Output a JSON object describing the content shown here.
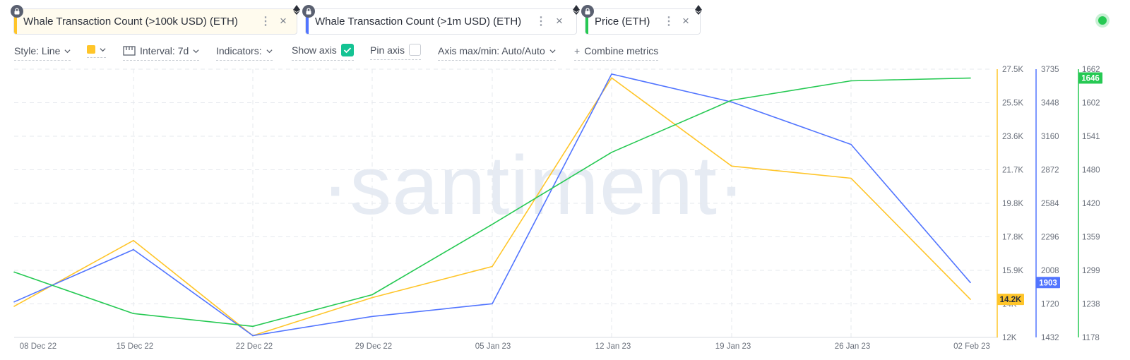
{
  "tabs": [
    {
      "label": "Whale Transaction Count (>100k USD) (ETH)",
      "color": "#ffc529",
      "icon": "ethereum-icon",
      "locked": true
    },
    {
      "label": "Whale Transaction Count (>1m USD) (ETH)",
      "color": "#5275ff",
      "icon": "ethereum-icon",
      "locked": true
    },
    {
      "label": "Price (ETH)",
      "color": "#26c953",
      "icon": "ethereum-icon",
      "locked": true
    }
  ],
  "toolbar": {
    "style_label": "Style: Line",
    "color_swatch": "#ffc529",
    "interval_label": "Interval: 7d",
    "indicators_label": "Indicators:",
    "show_axis_label": "Show axis",
    "show_axis_checked": true,
    "pin_axis_label": "Pin axis",
    "pin_axis_checked": false,
    "axis_label": "Axis max/min: Auto/Auto",
    "combine_label": "Combine metrics"
  },
  "watermark": "·santiment·",
  "chart_data": {
    "type": "line",
    "grid": true,
    "x": [
      "08 Dec 22",
      "15 Dec 22",
      "22 Dec 22",
      "29 Dec 22",
      "05 Jan 23",
      "12 Jan 23",
      "19 Jan 23",
      "26 Jan 23",
      "02 Feb 23"
    ],
    "series": [
      {
        "name": "Whale Transaction Count (>100k USD) (ETH)",
        "color": "#ffc529",
        "values": [
          13800,
          17600,
          12100,
          14300,
          16100,
          27000,
          21900,
          21200,
          14200
        ],
        "axis": {
          "ticks": [
            "27.5K",
            "25.5K",
            "23.6K",
            "21.7K",
            "19.8K",
            "17.8K",
            "15.9K",
            "14K",
            "12K"
          ],
          "min": 12000,
          "max": 27500
        },
        "last_label": "14.2K"
      },
      {
        "name": "Whale Transaction Count (>1m USD) (ETH)",
        "color": "#5275ff",
        "values": [
          1737,
          2186,
          1447,
          1612,
          1721,
          3693,
          3453,
          3089,
          1903
        ],
        "axis": {
          "ticks": [
            "3735",
            "3448",
            "3160",
            "2872",
            "2584",
            "2296",
            "2008",
            "1720",
            "1432"
          ],
          "min": 1432,
          "max": 3735
        },
        "last_label": "1903"
      },
      {
        "name": "Price (ETH)",
        "color": "#26c953",
        "values": [
          1296,
          1221,
          1198,
          1255,
          1382,
          1512,
          1606,
          1641,
          1646
        ],
        "axis": {
          "ticks": [
            "1662",
            "1602",
            "1541",
            "1480",
            "1420",
            "1359",
            "1299",
            "1238",
            "1178"
          ],
          "min": 1178,
          "max": 1662
        },
        "last_label": "1646"
      }
    ]
  }
}
